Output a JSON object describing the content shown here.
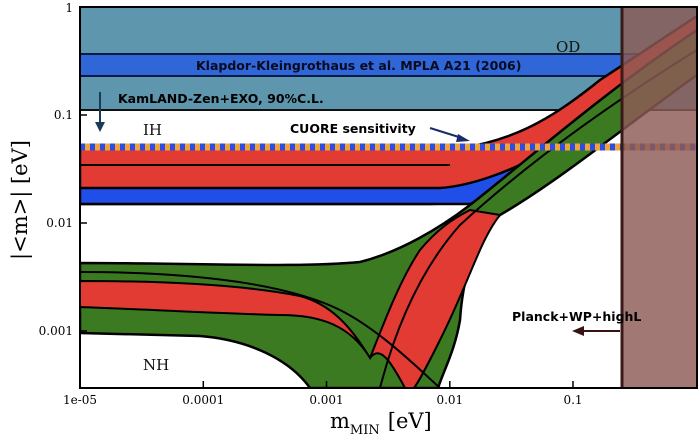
{
  "chart_data": {
    "type": "area",
    "title": "",
    "xlabel": "m",
    "xlabel_sub": "MIN",
    "xlabel_unit": "[eV]",
    "ylabel": "|<m>|  [eV]",
    "x_scale": "log",
    "y_scale": "log",
    "xlim": [
      1e-05,
      0.9
    ],
    "ylim": [
      0.0003,
      1
    ],
    "x_ticks": [
      {
        "value": 1e-05,
        "label": "1e-05"
      },
      {
        "value": 0.0001,
        "label": "0.0001"
      },
      {
        "value": 0.001,
        "label": "0.001"
      },
      {
        "value": 0.01,
        "label": "0.01"
      },
      {
        "value": 0.1,
        "label": "0.1"
      }
    ],
    "y_ticks": [
      {
        "value": 1,
        "label": "1"
      },
      {
        "value": 0.1,
        "label": "0.1"
      },
      {
        "value": 0.01,
        "label": "0.01"
      },
      {
        "value": 0.001,
        "label": "0.001"
      }
    ],
    "colors": {
      "excluded_region": "#5e97ad",
      "klapdor_band": "#2f66d8",
      "ih_outer": "#e23b33",
      "ih_inner": "#1f4fe8",
      "nh_outer": "#3c7a22",
      "nh_inner": "#e23b33",
      "planck_region": "#8c5a55",
      "cuore_line": "#f2a23c",
      "cuore_dash": "#2a4fe0"
    },
    "bands": [
      {
        "name": "IH",
        "x": [
          1e-05,
          0.001,
          0.01,
          0.02,
          0.05,
          0.1,
          0.3,
          0.9
        ],
        "low": [
          0.015,
          0.015,
          0.016,
          0.02,
          0.041,
          0.082,
          0.24,
          0.72
        ],
        "high": [
          0.05,
          0.05,
          0.051,
          0.055,
          0.078,
          0.13,
          0.34,
          0.95
        ]
      },
      {
        "name": "NH",
        "x": [
          1e-05,
          0.0005,
          0.001,
          0.002,
          0.004,
          0.008,
          0.02,
          0.05,
          0.1,
          0.3
        ],
        "low": [
          0.001,
          0.0009,
          0.0005,
          0.0003,
          0.0003,
          0.0003,
          0.0065,
          0.03,
          0.06,
          0.18
        ],
        "high": [
          0.004,
          0.0042,
          0.0045,
          0.0055,
          0.0075,
          0.011,
          0.024,
          0.06,
          0.12,
          0.33
        ]
      }
    ],
    "limits": [
      {
        "name": "KamLAND-Zen+EXO, 90%C.L.",
        "y": 0.11
      },
      {
        "name": "CUORE sensitivity",
        "y": 0.05
      },
      {
        "name": "Planck+WP+highL",
        "x": 0.25
      }
    ],
    "klapdor_band": {
      "name": "Klapdor-Kleingrothaus et al. MPLA A21 (2006)",
      "y_range": [
        0.24,
        0.4
      ]
    },
    "labels": {
      "od": "OD",
      "ih": "IH",
      "nh": "NH",
      "klapdor": "Klapdor-Kleingrothaus et al. MPLA A21 (2006)",
      "kamland": "KamLAND-Zen+EXO, 90%C.L.",
      "cuore": "CUORE sensitivity",
      "planck": "Planck+WP+highL"
    }
  }
}
